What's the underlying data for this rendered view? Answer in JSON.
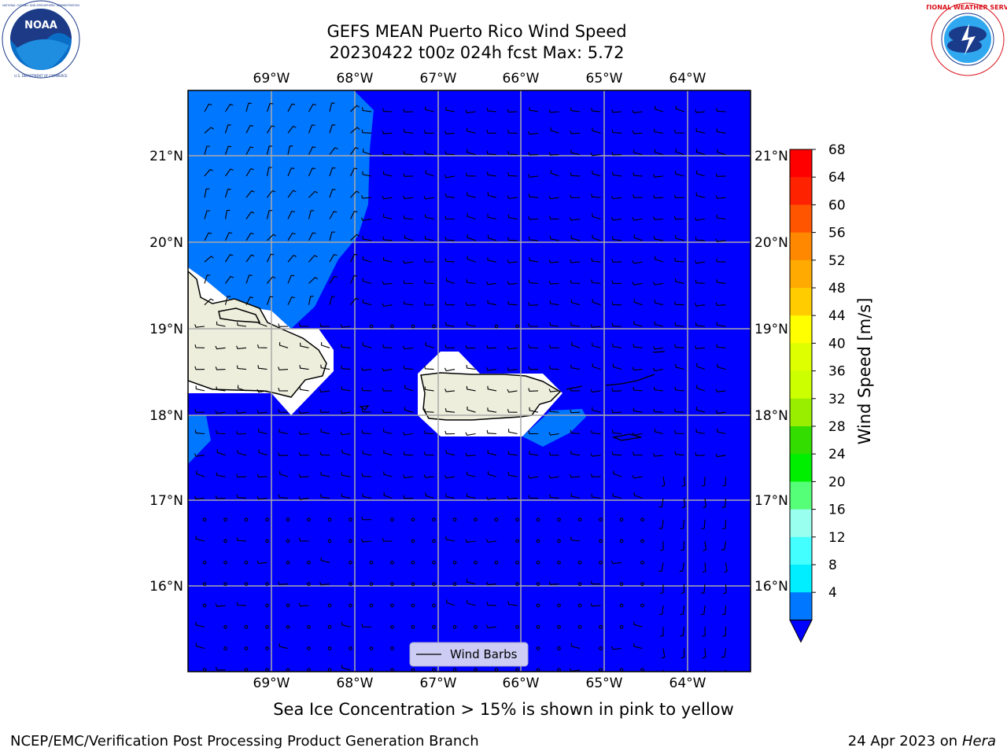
{
  "title": {
    "line1": "GEFS MEAN Puerto Rico Wind Speed",
    "line2": "20230422 t00z 024h fcst   Max: 5.72"
  },
  "logos": {
    "noaa_text": "NOAA",
    "noaa_ring_text": "NATIONAL OCEANIC AND ATMOSPHERIC ADMINISTRATION",
    "noaa_ring_bottom": "U.S. DEPARTMENT OF COMMERCE",
    "nws_ring_text": "NATIONAL WEATHER SERVICE"
  },
  "map": {
    "lon_labels": [
      "69°W",
      "68°W",
      "67°W",
      "66°W",
      "65°W",
      "64°W"
    ],
    "lat_labels": [
      "21°N",
      "20°N",
      "19°N",
      "18°N",
      "17°N",
      "16°N"
    ],
    "legend_label": "Wind Barbs",
    "ocean_color": "#0000ff",
    "light_wind_color": "#0077ff",
    "land_color": "#eeeedd"
  },
  "colorbar": {
    "label": "Wind Speed [m/s]",
    "ticks": [
      "68",
      "64",
      "60",
      "56",
      "52",
      "48",
      "44",
      "40",
      "36",
      "32",
      "28",
      "24",
      "20",
      "16",
      "12",
      "8",
      "4"
    ],
    "colors": [
      "#ff0000",
      "#ff2200",
      "#ff5500",
      "#ff8800",
      "#ffaa00",
      "#ffcc00",
      "#ffff00",
      "#ddff00",
      "#ccff00",
      "#99ee00",
      "#33dd00",
      "#00ee00",
      "#55ff77",
      "#99ffee",
      "#44ffff",
      "#00eeff",
      "#0077ff"
    ],
    "extend_color": "#0000ff"
  },
  "note": "Sea Ice Concentration > 15% is shown in pink to yellow",
  "footer": {
    "left": "NCEP/EMC/Verification Post Processing Product Generation Branch",
    "date": "24 Apr 2023 on ",
    "machine": "Hera"
  }
}
